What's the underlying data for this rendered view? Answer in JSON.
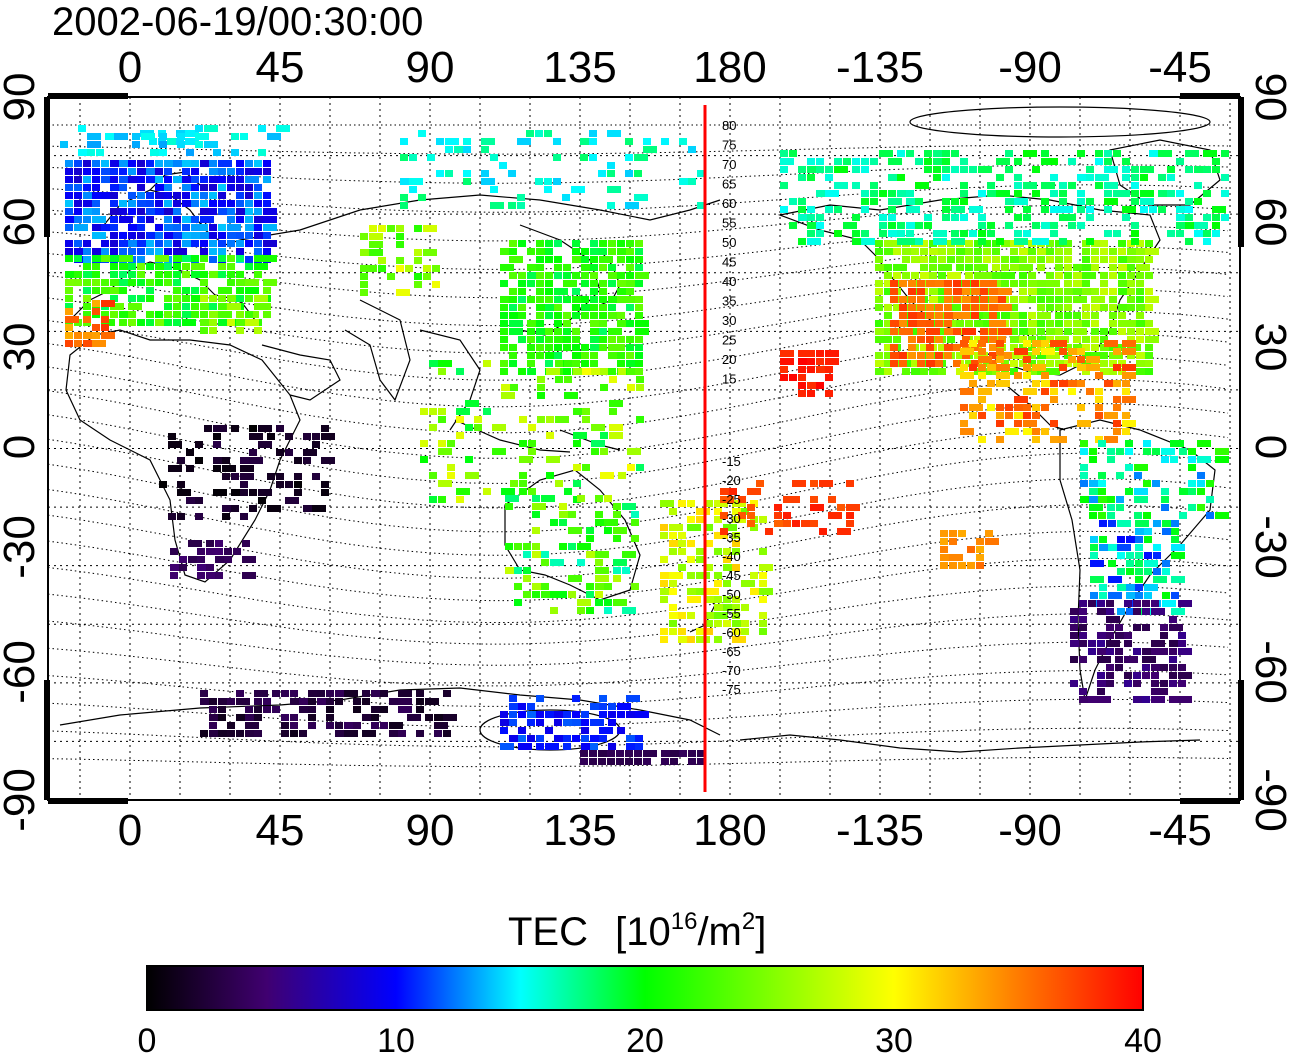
{
  "title": "2002-06-19/00:30:00",
  "map": {
    "lon_ticks_top": [
      "0",
      "45",
      "90",
      "135",
      "180",
      "-135",
      "-90",
      "-45"
    ],
    "lon_ticks_bottom": [
      "0",
      "45",
      "90",
      "135",
      "180",
      "-135",
      "-90",
      "-45"
    ],
    "lat_ticks_left": [
      "90",
      "60",
      "30",
      "0",
      "-30",
      "-60",
      "-90"
    ],
    "lat_ticks_right": [
      "90",
      "60",
      "30",
      "0",
      "-30",
      "-60",
      "-90"
    ],
    "projection": "equirectangular, central longitude ~153E",
    "grid": "dotted 15-degree graticule",
    "red_line_longitude": 172,
    "magnetic_latitude_labels_north": [
      "80",
      "75",
      "70",
      "65",
      "60",
      "55",
      "50",
      "45",
      "40",
      "35",
      "30",
      "25",
      "20",
      "15"
    ],
    "magnetic_latitude_labels_south": [
      "-15",
      "-20",
      "-25",
      "-30",
      "-35",
      "-40",
      "-45",
      "-50",
      "-55",
      "-60",
      "-65",
      "-70",
      "-75"
    ]
  },
  "colorbar": {
    "label": "TEC",
    "unit_prefix": "[10",
    "unit_exp1": "16",
    "unit_mid": "/m",
    "unit_exp2": "2",
    "unit_suffix": "]",
    "ticks": [
      "0",
      "10",
      "20",
      "30",
      "40"
    ],
    "min": 0,
    "max": 40,
    "colors": [
      "#000000",
      "#400070",
      "#0000ff",
      "#00ffff",
      "#00ff00",
      "#ffff00",
      "#ff8000",
      "#ff0000"
    ]
  }
}
